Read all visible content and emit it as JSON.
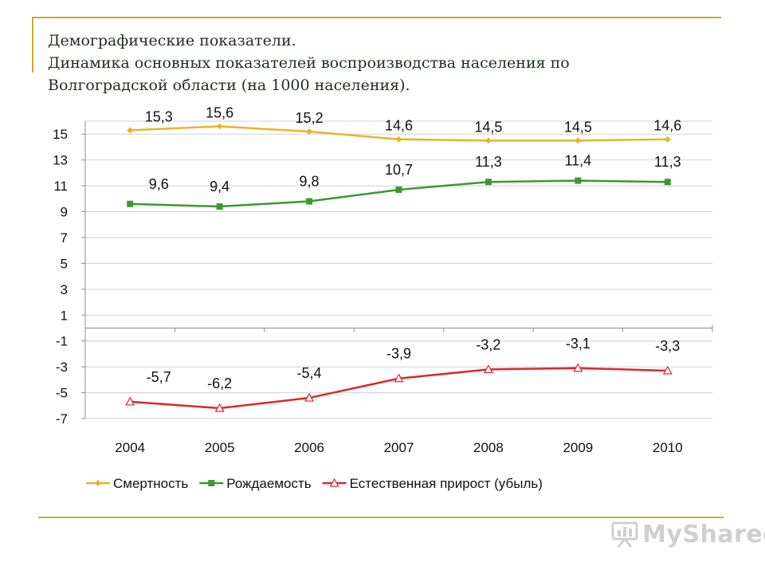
{
  "slide": {
    "title_line1": "Демографические показатели.",
    "title_line2": "Динамика основных показателей воспроизводства населения по",
    "title_line3": "Волгоградской области (на 1000 населения).",
    "watermark": "MyShared",
    "accent_color": "#c9a92a"
  },
  "chart_data": {
    "type": "line",
    "title": "",
    "xlabel": "",
    "ylabel": "",
    "categories": [
      "2004",
      "2005",
      "2006",
      "2007",
      "2008",
      "2009",
      "2010"
    ],
    "yticks": [
      "15",
      "13",
      "11",
      "9",
      "7",
      "5",
      "3",
      "1",
      "-1",
      "-3",
      "-5",
      "-7"
    ],
    "ylim": [
      -7,
      16
    ],
    "grid": true,
    "legend_position": "bottom",
    "series": [
      {
        "name": "Смертность",
        "values": [
          15.3,
          15.6,
          15.2,
          14.6,
          14.5,
          14.5,
          14.6
        ],
        "labels": [
          "15,3",
          "15,6",
          "15,2",
          "14,6",
          "14,5",
          "14,5",
          "14,6"
        ],
        "color": "#e8b42a",
        "marker": "diamond"
      },
      {
        "name": "Рождаемость",
        "values": [
          9.6,
          9.4,
          9.8,
          10.7,
          11.3,
          11.4,
          11.3
        ],
        "labels": [
          "9,6",
          "9,4",
          "9,8",
          "10,7",
          "11,3",
          "11,4",
          "11,3"
        ],
        "color": "#3a9a2e",
        "marker": "square"
      },
      {
        "name": "Естественная прирост (убыль)",
        "values": [
          -5.7,
          -6.2,
          -5.4,
          -3.9,
          -3.2,
          -3.1,
          -3.3
        ],
        "labels": [
          "-5,7",
          "-6,2",
          "-5,4",
          "-3,9",
          "-3,2",
          "-3,1",
          "-3,3"
        ],
        "color": "#e0262a",
        "marker": "triangle"
      }
    ]
  }
}
